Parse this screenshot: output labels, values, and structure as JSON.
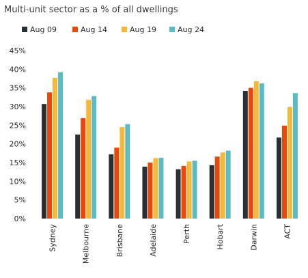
{
  "chart_data": {
    "type": "bar",
    "title": "Multi-unit sector as a % of all dwellings",
    "xlabel": "",
    "ylabel": "",
    "ylim": [
      0,
      45
    ],
    "yticks": [
      "0%",
      "5%",
      "10%",
      "15%",
      "20%",
      "25%",
      "30%",
      "35%",
      "40%",
      "45%"
    ],
    "grid": false,
    "legend_position": "top-left",
    "categories": [
      "Sydney",
      "Melbourne",
      "Brisbane",
      "Adelaide",
      "Perth",
      "Hobart",
      "Darwin",
      "ACT"
    ],
    "series": [
      {
        "name": "Aug 09",
        "color": "#2a2f36",
        "values": [
          30.7,
          22.5,
          17.2,
          13.9,
          13.2,
          14.3,
          34.2,
          21.7
        ]
      },
      {
        "name": "Aug 14",
        "color": "#e8480c",
        "values": [
          33.8,
          26.9,
          19.0,
          15.0,
          14.1,
          16.6,
          35.0,
          24.9
        ]
      },
      {
        "name": "Aug 19",
        "color": "#f5b93a",
        "values": [
          37.7,
          31.8,
          24.5,
          16.2,
          15.3,
          17.7,
          36.8,
          29.9
        ]
      },
      {
        "name": "Aug 24",
        "color": "#5bbcc4",
        "values": [
          39.2,
          32.8,
          25.3,
          16.3,
          15.5,
          18.2,
          36.2,
          33.6
        ]
      }
    ]
  }
}
